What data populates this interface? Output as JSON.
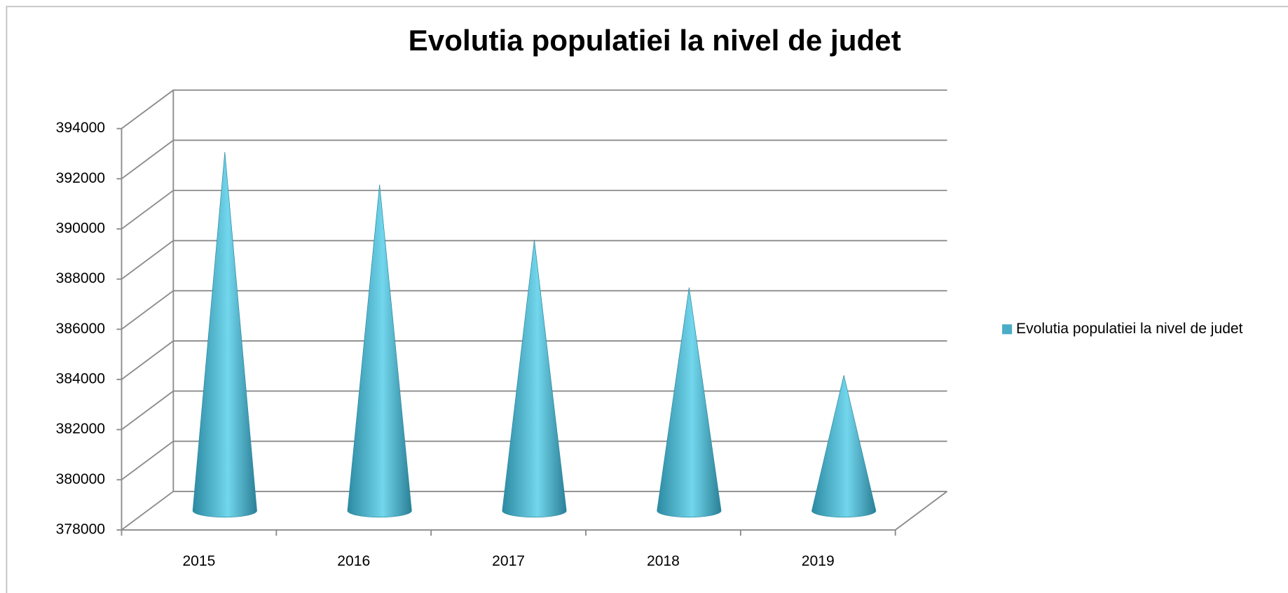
{
  "chart_data": {
    "type": "cone3d",
    "title": "Evolutia populatiei la nivel de judet",
    "categories": [
      "2015",
      "2016",
      "2017",
      "2018",
      "2019"
    ],
    "series": [
      {
        "name": "Evolutia populatiei la nivel de judet",
        "color": "#4bacc6",
        "values": [
          392300,
          391000,
          388800,
          386900,
          383400
        ]
      }
    ],
    "ylim": [
      378000,
      394000
    ],
    "yticks": [
      378000,
      380000,
      382000,
      384000,
      386000,
      388000,
      390000,
      392000,
      394000
    ],
    "grid": true,
    "legend": "right"
  }
}
